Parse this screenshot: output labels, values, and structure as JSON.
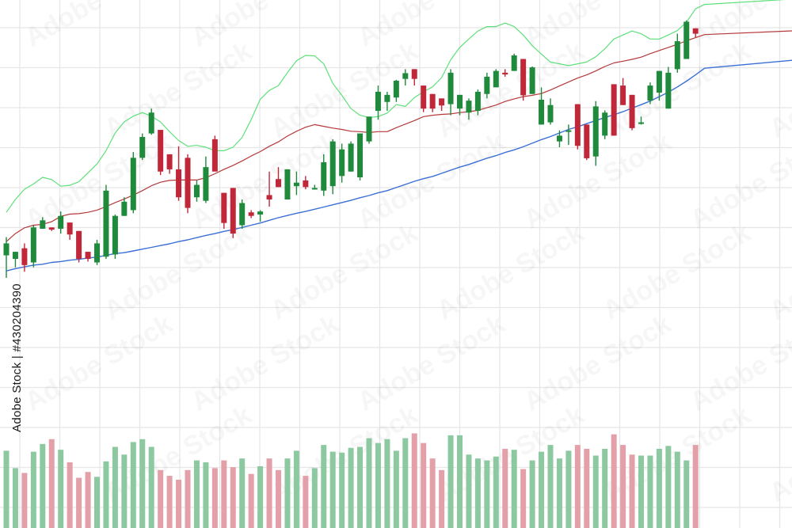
{
  "watermark_text": "Adobe Stock",
  "stock_id": "Adobe Stock | #430204390",
  "colors": {
    "background": "#ffffff",
    "grid": "#e6e6e6",
    "bull": "#1f8a3b",
    "bear": "#c0283a",
    "bull_volume": "#8cc9a0",
    "bear_volume": "#e3a0a8",
    "ma_fast": "#5ee07a",
    "ma_mid": "#b5393a",
    "ma_slow": "#3b6fd6"
  },
  "chart_data": {
    "type": "candlestick",
    "title": "",
    "xlabel": "",
    "ylabel": "",
    "grid": true,
    "ylim": [
      0,
      100
    ],
    "volume_ylim": [
      0,
      100
    ],
    "candles": [
      {
        "o": 42.4,
        "h": 46.5,
        "l": 37.3,
        "c": 45.1,
        "v": 80
      },
      {
        "o": 41.6,
        "h": 43.2,
        "l": 39.7,
        "c": 43.2,
        "v": 62
      },
      {
        "o": 44.0,
        "h": 45.1,
        "l": 38.7,
        "c": 40.2,
        "v": 57
      },
      {
        "o": 40.8,
        "h": 49.2,
        "l": 39.7,
        "c": 48.7,
        "v": 79
      },
      {
        "o": 48.4,
        "h": 51.0,
        "l": 48.4,
        "c": 50.3,
        "v": 87
      },
      {
        "o": 48.7,
        "h": 48.7,
        "l": 47.9,
        "c": 48.2,
        "v": 92
      },
      {
        "o": 48.4,
        "h": 52.3,
        "l": 47.3,
        "c": 51.3,
        "v": 81
      },
      {
        "o": 49.8,
        "h": 49.8,
        "l": 45.9,
        "c": 47.1,
        "v": 68
      },
      {
        "o": 47.9,
        "h": 47.9,
        "l": 40.8,
        "c": 41.6,
        "v": 52
      },
      {
        "o": 43.2,
        "h": 43.2,
        "l": 41.0,
        "c": 41.6,
        "v": 58
      },
      {
        "o": 40.8,
        "h": 45.9,
        "l": 40.2,
        "c": 45.1,
        "v": 53
      },
      {
        "o": 42.1,
        "h": 58.3,
        "l": 41.6,
        "c": 57.0,
        "v": 69
      },
      {
        "o": 42.6,
        "h": 51.6,
        "l": 41.6,
        "c": 51.3,
        "v": 84
      },
      {
        "o": 51.3,
        "h": 55.5,
        "l": 51.3,
        "c": 54.5,
        "v": 76
      },
      {
        "o": 52.6,
        "h": 65.7,
        "l": 51.9,
        "c": 64.4,
        "v": 89
      },
      {
        "o": 64.4,
        "h": 69.9,
        "l": 63.9,
        "c": 69.1,
        "v": 92
      },
      {
        "o": 69.9,
        "h": 75.5,
        "l": 69.6,
        "c": 74.6,
        "v": 84
      },
      {
        "o": 70.7,
        "h": 70.7,
        "l": 60.5,
        "c": 61.3,
        "v": 60
      },
      {
        "o": 65.2,
        "h": 65.2,
        "l": 60.8,
        "c": 61.8,
        "v": 54
      },
      {
        "o": 61.8,
        "h": 67.0,
        "l": 54.7,
        "c": 55.5,
        "v": 50
      },
      {
        "o": 64.4,
        "h": 65.2,
        "l": 51.9,
        "c": 53.1,
        "v": 60
      },
      {
        "o": 55.5,
        "h": 59.3,
        "l": 54.5,
        "c": 58.3,
        "v": 70
      },
      {
        "o": 54.7,
        "h": 64.7,
        "l": 54.2,
        "c": 62.3,
        "v": 68
      },
      {
        "o": 68.6,
        "h": 69.4,
        "l": 61.8,
        "c": 61.3,
        "v": 62
      },
      {
        "o": 56.5,
        "h": 56.5,
        "l": 48.4,
        "c": 49.7,
        "v": 70
      },
      {
        "o": 57.6,
        "h": 57.6,
        "l": 46.3,
        "c": 47.3,
        "v": 63
      },
      {
        "o": 49.2,
        "h": 55.0,
        "l": 48.4,
        "c": 54.2,
        "v": 72
      },
      {
        "o": 52.1,
        "h": 52.6,
        "l": 50.8,
        "c": 51.3,
        "v": 56
      },
      {
        "o": 51.6,
        "h": 52.6,
        "l": 50.0,
        "c": 52.3,
        "v": 64
      },
      {
        "o": 56.0,
        "h": 61.3,
        "l": 53.4,
        "c": 55.0,
        "v": 72
      },
      {
        "o": 59.6,
        "h": 62.3,
        "l": 57.8,
        "c": 57.8,
        "v": 60
      },
      {
        "o": 55.0,
        "h": 61.8,
        "l": 55.0,
        "c": 61.8,
        "v": 72
      },
      {
        "o": 58.0,
        "h": 61.3,
        "l": 56.0,
        "c": 58.8,
        "v": 80
      },
      {
        "o": 59.3,
        "h": 60.3,
        "l": 57.3,
        "c": 57.8,
        "v": 54
      },
      {
        "o": 57.3,
        "h": 58.3,
        "l": 57.3,
        "c": 57.6,
        "v": 62
      },
      {
        "o": 57.0,
        "h": 65.2,
        "l": 55.8,
        "c": 63.4,
        "v": 86
      },
      {
        "o": 58.0,
        "h": 68.6,
        "l": 56.2,
        "c": 68.1,
        "v": 79
      },
      {
        "o": 60.3,
        "h": 67.6,
        "l": 58.8,
        "c": 66.3,
        "v": 78
      },
      {
        "o": 61.3,
        "h": 68.1,
        "l": 61.3,
        "c": 67.6,
        "v": 83
      },
      {
        "o": 60.0,
        "h": 69.4,
        "l": 59.3,
        "c": 69.9,
        "v": 84
      },
      {
        "o": 68.1,
        "h": 73.7,
        "l": 67.6,
        "c": 73.7,
        "v": 93
      },
      {
        "o": 75.0,
        "h": 80.7,
        "l": 73.0,
        "c": 79.3,
        "v": 88
      },
      {
        "o": 77.0,
        "h": 79.3,
        "l": 75.0,
        "c": 78.6,
        "v": 92
      },
      {
        "o": 78.0,
        "h": 82.0,
        "l": 77.0,
        "c": 81.8,
        "v": 80
      },
      {
        "o": 82.2,
        "h": 84.4,
        "l": 80.7,
        "c": 83.5,
        "v": 93
      },
      {
        "o": 84.4,
        "h": 84.4,
        "l": 80.7,
        "c": 82.2,
        "v": 98
      },
      {
        "o": 80.7,
        "h": 80.7,
        "l": 74.7,
        "c": 75.5,
        "v": 88
      },
      {
        "o": 78.8,
        "h": 78.8,
        "l": 74.7,
        "c": 75.5,
        "v": 72
      },
      {
        "o": 77.8,
        "h": 77.8,
        "l": 75.0,
        "c": 76.2,
        "v": 60
      },
      {
        "o": 76.5,
        "h": 84.4,
        "l": 74.0,
        "c": 83.6,
        "v": 96
      },
      {
        "o": 75.5,
        "h": 78.6,
        "l": 74.0,
        "c": 78.6,
        "v": 96
      },
      {
        "o": 74.6,
        "h": 77.8,
        "l": 73.0,
        "c": 77.3,
        "v": 76
      },
      {
        "o": 75.0,
        "h": 79.8,
        "l": 74.0,
        "c": 79.3,
        "v": 72
      },
      {
        "o": 78.8,
        "h": 83.6,
        "l": 77.8,
        "c": 82.7,
        "v": 70
      },
      {
        "o": 80.3,
        "h": 84.4,
        "l": 80.3,
        "c": 84.0,
        "v": 74
      },
      {
        "o": 83.6,
        "h": 84.4,
        "l": 82.7,
        "c": 83.2,
        "v": 82
      },
      {
        "o": 84.0,
        "h": 87.9,
        "l": 84.0,
        "c": 87.5,
        "v": 81
      },
      {
        "o": 86.7,
        "h": 86.7,
        "l": 77.3,
        "c": 78.5,
        "v": 61
      },
      {
        "o": 78.8,
        "h": 85.0,
        "l": 78.8,
        "c": 84.8,
        "v": 70
      },
      {
        "o": 71.9,
        "h": 80.3,
        "l": 71.9,
        "c": 77.5,
        "v": 79
      },
      {
        "o": 72.4,
        "h": 77.8,
        "l": 71.9,
        "c": 76.3,
        "v": 86
      },
      {
        "o": 68.1,
        "h": 70.6,
        "l": 66.8,
        "c": 69.4,
        "v": 72
      },
      {
        "o": 70.3,
        "h": 71.9,
        "l": 67.3,
        "c": 70.6,
        "v": 80
      },
      {
        "o": 76.5,
        "h": 76.5,
        "l": 66.3,
        "c": 67.1,
        "v": 86
      },
      {
        "o": 71.9,
        "h": 71.9,
        "l": 63.9,
        "c": 64.3,
        "v": 82
      },
      {
        "o": 64.7,
        "h": 77.2,
        "l": 62.6,
        "c": 76.0,
        "v": 75
      },
      {
        "o": 69.4,
        "h": 75.1,
        "l": 68.6,
        "c": 74.6,
        "v": 82
      },
      {
        "o": 81.0,
        "h": 81.0,
        "l": 69.4,
        "c": 69.4,
        "v": 97
      },
      {
        "o": 80.7,
        "h": 82.4,
        "l": 76.3,
        "c": 76.3,
        "v": 86
      },
      {
        "o": 78.6,
        "h": 78.6,
        "l": 70.6,
        "c": 71.1,
        "v": 76
      },
      {
        "o": 72.4,
        "h": 73.7,
        "l": 71.9,
        "c": 72.4,
        "v": 75
      },
      {
        "o": 77.3,
        "h": 81.4,
        "l": 76.5,
        "c": 80.7,
        "v": 75
      },
      {
        "o": 79.1,
        "h": 84.0,
        "l": 77.3,
        "c": 84.0,
        "v": 82
      },
      {
        "o": 75.5,
        "h": 84.9,
        "l": 75.5,
        "c": 83.6,
        "v": 85
      },
      {
        "o": 84.4,
        "h": 92.4,
        "l": 83.6,
        "c": 90.7,
        "v": 79
      },
      {
        "o": 86.7,
        "h": 95.4,
        "l": 86.7,
        "c": 95.1,
        "v": 70
      },
      {
        "o": 93.6,
        "h": 93.6,
        "l": 91.6,
        "c": 92.4,
        "v": 86
      }
    ],
    "moving_averages": [
      {
        "values": [
          52.1,
          55.0,
          57.3,
          58.5,
          60.0,
          59.5,
          58.0,
          58.2,
          59.0,
          61.0,
          63.0,
          66.0,
          70.0,
          72.5,
          73.8,
          74.6,
          73.8,
          72.5,
          70.3,
          68.3,
          67.0,
          67.2,
          66.8,
          66.0,
          66.0,
          66.8,
          69.0,
          73.0,
          77.6,
          79.6,
          80.7,
          83.6,
          86.3,
          87.5,
          87.4,
          85.6,
          81.2,
          78.5,
          75.5,
          74.0,
          73.5,
          73.7,
          74.5,
          76.4,
          76.0,
          78.0,
          79.3,
          80.4,
          82.5,
          86.5,
          89.3,
          91.2,
          93.0,
          94.0,
          94.0,
          94.8,
          94.0,
          92.1,
          89.7,
          87.8,
          86.0,
          85.6,
          85.2,
          85.6,
          86.0,
          87.2,
          89.0,
          91.2,
          92.1,
          93.0,
          92.4,
          91.2,
          91.2,
          92.1,
          93.1,
          95.0,
          98.0,
          99.0
        ]
      },
      {
        "values": [
          45.5,
          47.3,
          48.6,
          49.2,
          49.4,
          50.0,
          51.2,
          51.7,
          51.8,
          52.1,
          52.6,
          53.4,
          54.3,
          55.1,
          56.0,
          57.0,
          58.1,
          58.9,
          59.3,
          59.4,
          59.4,
          59.4,
          59.9,
          60.8,
          61.8,
          62.7,
          63.7,
          64.8,
          65.8,
          67.0,
          68.0,
          69.3,
          70.4,
          71.3,
          71.9,
          71.5,
          71.1,
          70.8,
          70.4,
          70.3,
          70.1,
          70.3,
          70.3,
          71.2,
          72.0,
          72.8,
          73.7,
          74.0,
          74.2,
          74.3,
          74.6,
          74.8,
          75.1,
          75.7,
          76.3,
          77.1,
          77.7,
          78.2,
          78.5,
          78.9,
          79.7,
          80.6,
          81.5,
          82.4,
          83.1,
          84.0,
          85.0,
          85.8,
          86.2,
          86.6,
          87.1,
          87.9,
          88.6,
          89.3,
          90.0,
          90.8,
          91.5,
          92.2
        ]
      },
      {
        "values": [
          38.9,
          39.4,
          39.8,
          40.2,
          40.4,
          40.8,
          41.0,
          41.3,
          41.5,
          41.8,
          42.0,
          42.4,
          42.8,
          43.0,
          43.4,
          43.8,
          44.2,
          44.6,
          45.0,
          45.5,
          45.9,
          46.4,
          46.9,
          47.3,
          47.8,
          48.2,
          48.7,
          49.2,
          49.7,
          50.3,
          50.9,
          51.4,
          51.9,
          52.3,
          52.8,
          53.3,
          53.8,
          54.3,
          54.8,
          55.4,
          55.9,
          56.5,
          57.0,
          57.7,
          58.4,
          59.1,
          59.7,
          60.2,
          60.9,
          61.6,
          62.3,
          62.9,
          63.6,
          64.3,
          64.9,
          65.6,
          66.2,
          66.9,
          67.7,
          68.5,
          69.2,
          70.0,
          70.8,
          71.4,
          72.1,
          72.8,
          73.5,
          74.1,
          74.8,
          75.6,
          76.4,
          77.2,
          78.2,
          79.2,
          80.4,
          81.7,
          83.1,
          84.6
        ]
      }
    ]
  }
}
